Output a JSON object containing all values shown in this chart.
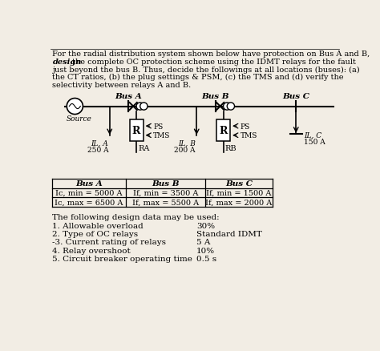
{
  "bg_color": "#f2ede4",
  "title_line1": "For the radial distribution system shown below have protection on Bus A and B,",
  "title_line2_bold": "design",
  "title_line2_rest": " the complete OC protection scheme using the IDMT relays for the fault",
  "title_line3": "just beyond the bus B. Thus, decide the followings at all locations (buses): (a)",
  "title_line4": "the CT ratios, (b) the plug settings & PSM, (c) the TMS and (d) verify the",
  "title_line5": "selectivity between relays A and B.",
  "bus_labels": [
    "Bus A",
    "Bus B",
    "Bus C"
  ],
  "source_label": "Source",
  "relay_labels": [
    "RA",
    "RB"
  ],
  "load_A": [
    "IL, A",
    "250 A"
  ],
  "load_B": [
    "IL, B",
    "200 A"
  ],
  "load_C": [
    "IL, C",
    "150 A"
  ],
  "table_headers": [
    "Bus A",
    "Bus B",
    "Bus C"
  ],
  "table_row1": [
    "Ic, min = 5000 A",
    "If, min = 3500 A",
    "If, min = 1500 A"
  ],
  "table_row2": [
    "Ic, max = 6500 A",
    "If, max = 5500 A",
    "If, max = 2000 A"
  ],
  "dd_title": "The following design data may be used:",
  "dd_items": [
    [
      "1. Allowable overload",
      "30%"
    ],
    [
      "2. Type of OC relays",
      "Standard IDMT"
    ],
    [
      "-3. Current rating of relays",
      "5 A"
    ],
    [
      "4. Relay overshoot",
      "10%"
    ],
    [
      "5. Circuit breaker operating time",
      "0.5 s"
    ]
  ]
}
